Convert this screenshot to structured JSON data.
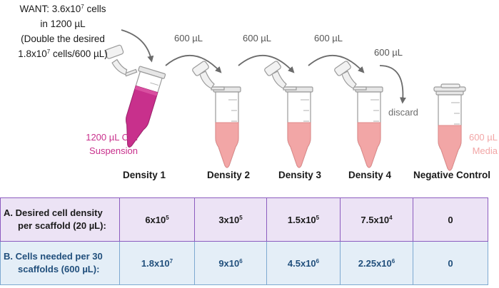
{
  "want": {
    "line1_prefix": "WANT: 3.6x10",
    "line1_exp": "7",
    "line1_suffix": " cells",
    "line2": "in 1200 µL",
    "line3": "(Double the desired",
    "line4_prefix": "1.8x10",
    "line4_exp": "7",
    "line4_suffix": " cells/600 µL)"
  },
  "transfers": [
    "600 µL",
    "600 µL",
    "600 µL",
    "600 µL"
  ],
  "discard_label": "discard",
  "suspension_label": [
    "1200 µL Cell",
    "Suspension"
  ],
  "media_label": [
    "600 µL",
    "Media"
  ],
  "tubes": [
    "Density 1",
    "Density 2",
    "Density 3",
    "Density 4",
    "Negative Control"
  ],
  "colors": {
    "suspension": "#c8308c",
    "media": "#f2a6a6",
    "row_a_fill": "#ece3f5",
    "row_a_border": "#8c5cbf",
    "row_b_fill": "#e4eef7",
    "row_b_border": "#7ea9d1",
    "row_b_text": "#214f7c"
  },
  "table": {
    "row_a": {
      "label_line1": "A.  Desired cell density",
      "label_line2": "per scaffold (20 µL):",
      "cells": [
        {
          "base": "6x10",
          "exp": "5"
        },
        {
          "base": "3x10",
          "exp": "5"
        },
        {
          "base": "1.5x10",
          "exp": "5"
        },
        {
          "base": "7.5x10",
          "exp": "4"
        },
        {
          "base": "0",
          "exp": ""
        }
      ]
    },
    "row_b": {
      "label_line1": "B.  Cells needed per 30",
      "label_line2": "scaffolds (600 µL):",
      "cells": [
        {
          "base": "1.8x10",
          "exp": "7"
        },
        {
          "base": "9x10",
          "exp": "6"
        },
        {
          "base": "4.5x10",
          "exp": "6"
        },
        {
          "base": "2.25x10",
          "exp": "6"
        },
        {
          "base": "0",
          "exp": ""
        }
      ]
    }
  }
}
